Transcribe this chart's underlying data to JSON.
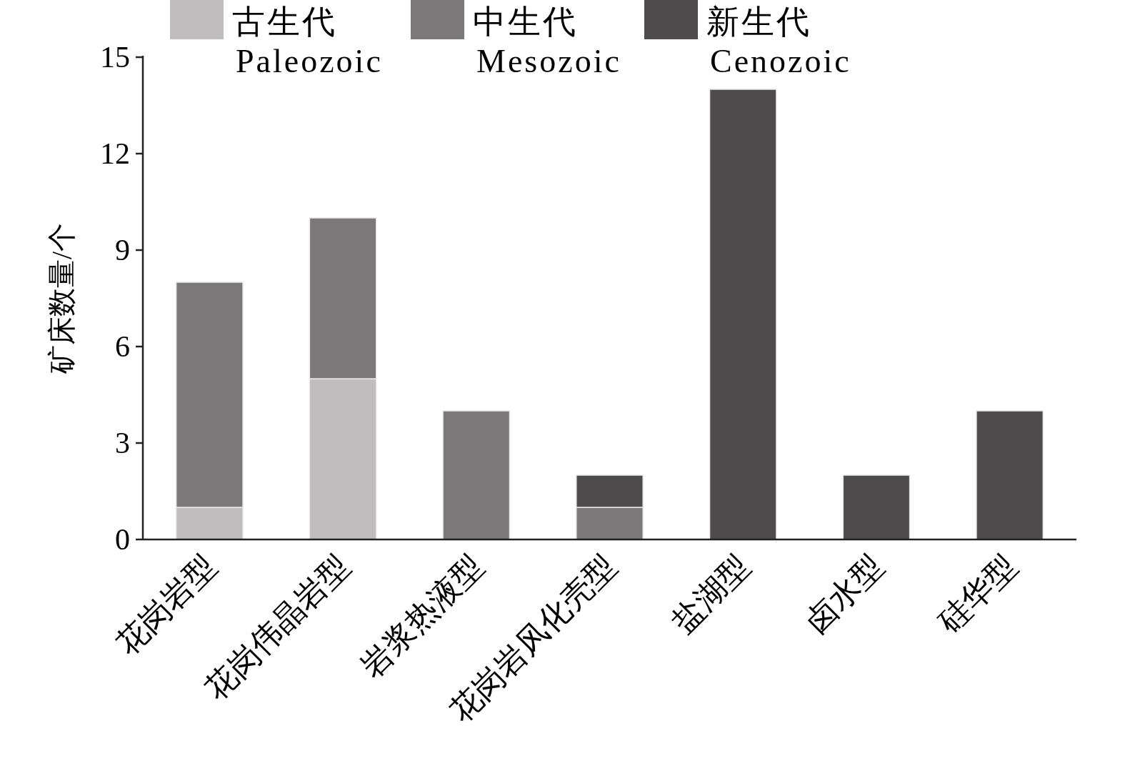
{
  "chart_data": {
    "type": "bar",
    "stacked": true,
    "ylabel": "矿床数量/个",
    "categories": [
      "花岗岩型",
      "花岗伟晶岩型",
      "岩浆热液型",
      "花岗岩风化壳型",
      "盐湖型",
      "卤水型",
      "硅华型"
    ],
    "series": [
      {
        "name": "古生代\nPaleozoic",
        "color": "#bfbdbe",
        "values": [
          1,
          5,
          null,
          null,
          null,
          null,
          null
        ]
      },
      {
        "name": "中生代\nMesozoic",
        "color": "#7a7879",
        "values": [
          7,
          5,
          4,
          1,
          null,
          null,
          null
        ]
      },
      {
        "name": "新生代\nCenozoic",
        "color": "#4d4b4c",
        "values": [
          null,
          null,
          null,
          1,
          14,
          2,
          4
        ]
      }
    ],
    "ylim": [
      0,
      15
    ],
    "yticks": [
      0,
      3,
      6,
      9,
      12,
      15
    ],
    "legend": "top"
  }
}
